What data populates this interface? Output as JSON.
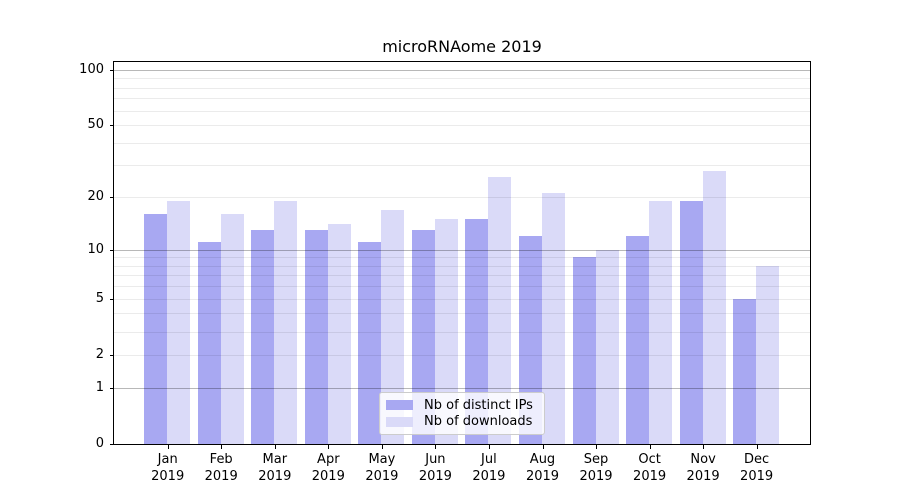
{
  "chart_data": {
    "type": "bar",
    "title": "microRNAome 2019",
    "categories": [
      "Jan 2019",
      "Feb 2019",
      "Mar 2019",
      "Apr 2019",
      "May 2019",
      "Jun 2019",
      "Jul 2019",
      "Aug 2019",
      "Sep 2019",
      "Oct 2019",
      "Nov 2019",
      "Dec 2019"
    ],
    "series": [
      {
        "name": "Nb of distinct IPs",
        "color": "#a8a8f2",
        "values": [
          16,
          11,
          13,
          13,
          11,
          13,
          15,
          12,
          9,
          12,
          19,
          5
        ]
      },
      {
        "name": "Nb of downloads",
        "color": "#dadaf8",
        "values": [
          19,
          16,
          19,
          14,
          17,
          15,
          26,
          21,
          10,
          19,
          28,
          8
        ]
      }
    ],
    "y_axis": {
      "scale": "log1p",
      "ticks": [
        0,
        1,
        2,
        5,
        10,
        20,
        50,
        100
      ],
      "ylim": [
        0,
        112
      ]
    },
    "x_axis": {
      "tick_year": "2019"
    },
    "grid": "horizontal",
    "legend_position": "lower center"
  }
}
